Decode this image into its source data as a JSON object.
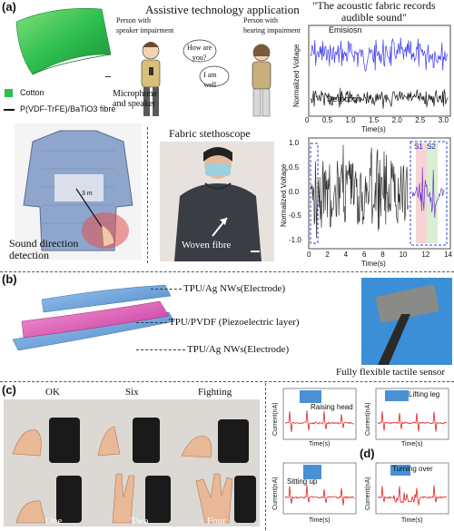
{
  "panel_a": {
    "letter": "(a)",
    "legend": {
      "cotton": "Cotton",
      "fibre": "P(VDF-TrFE)/BaTiO3 fibre",
      "cotton_color": "#2fbf4f"
    },
    "assistive_title": "Assistive technology application",
    "person_left": "Person with\nspeaker impairment",
    "person_right": "Person with\nhearing impairment",
    "bubble_1": "How are\nyou?",
    "bubble_2": "I am\nwell",
    "mic_label": "Microphone\nand speaker",
    "record_title": "\"The acoustic fabric records\naudible sound\"",
    "record_emission": "Emisiosn",
    "record_detection": "Detection",
    "record_ylabel": "Normalized Voltage",
    "record_xlabel": "Time(s)",
    "record_ticks": [
      "0",
      "0.5",
      "1.0",
      "1.5",
      "2.0",
      "2.5",
      "3.0"
    ],
    "emission_color": "#3a3af0",
    "sound_direction": "Sound direction\ndetection",
    "stethoscope_title": "Fabric stethoscope",
    "woven_label": "Woven fibre",
    "steth_ylabel": "Normalized Voltage",
    "steth_xlabel": "Time(s)",
    "steth_xticks": [
      "0",
      "2",
      "4",
      "6",
      "8",
      "10",
      "12",
      "14"
    ],
    "steth_yticks": [
      "1.0",
      "0.5",
      "0.0",
      "-0.5",
      "-1.0"
    ],
    "s1": "S1",
    "s2": "S2",
    "dist_label": "3 m"
  },
  "panel_b": {
    "letter": "(b)",
    "top_layer": "TPU/Ag NWs(Electrode)",
    "middle_layer": "TPU/PVDF (Piezoelectric layer)",
    "bottom_layer": "TPU/Ag NWs(Electrode)",
    "sensor_label": "Fully flexible tactile sensor"
  },
  "panel_c": {
    "letter": "(c)",
    "gestures_top": [
      "OK",
      "Six",
      "Fighting"
    ],
    "gestures_bottom": [
      "One",
      "Two",
      "Four"
    ]
  },
  "panel_d": {
    "letter": "(d)",
    "ylabel": "Current(nA)",
    "xlabel": "Time(s)",
    "plots": [
      "Raising head",
      "Lifting leg",
      "Sitting up",
      "Turning over"
    ]
  }
}
